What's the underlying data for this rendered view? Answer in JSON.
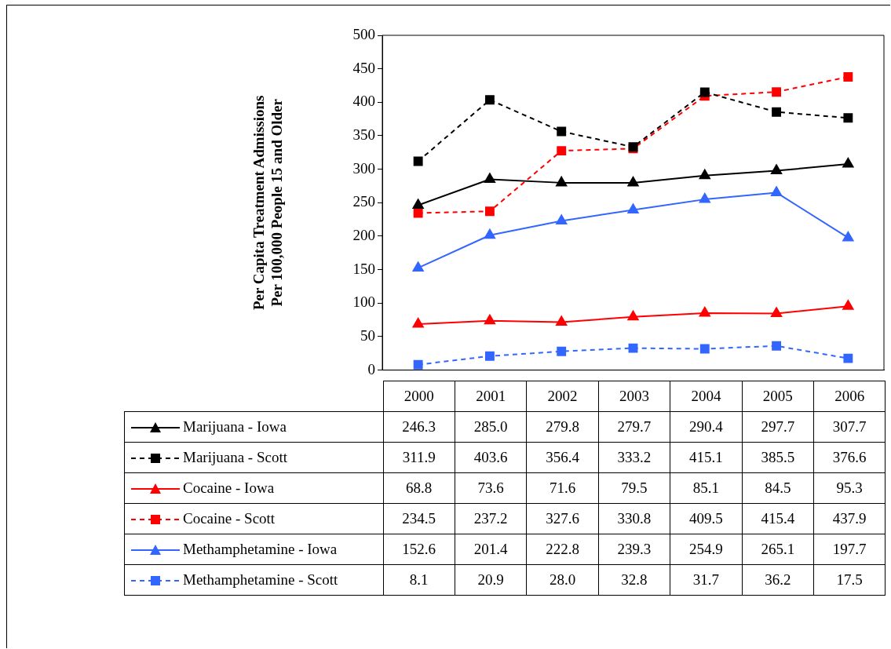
{
  "chart_data": {
    "type": "line",
    "ylabel": "Per Capita Treatment Admissions\nPer 100,000 People 15 and Older",
    "categories": [
      "2000",
      "2001",
      "2002",
      "2003",
      "2004",
      "2005",
      "2006"
    ],
    "ylim": [
      0,
      500
    ],
    "yticks": [
      0,
      50,
      100,
      150,
      200,
      250,
      300,
      350,
      400,
      450,
      500
    ],
    "grid": false,
    "legend": "bottom",
    "series": [
      {
        "name": "Marijuana - Iowa",
        "color": "#000000",
        "marker": "triangle",
        "line_style": "solid",
        "values": [
          246.3,
          285.0,
          279.8,
          279.7,
          290.4,
          297.7,
          307.7
        ],
        "value_labels": [
          "246.3",
          "285.0",
          "279.8",
          "279.7",
          "290.4",
          "297.7",
          "307.7"
        ]
      },
      {
        "name": "Marijuana - Scott",
        "color": "#000000",
        "marker": "square",
        "line_style": "dashed",
        "values": [
          311.9,
          403.6,
          356.4,
          333.2,
          415.1,
          385.5,
          376.6
        ],
        "value_labels": [
          "311.9",
          "403.6",
          "356.4",
          "333.2",
          "415.1",
          "385.5",
          "376.6"
        ]
      },
      {
        "name": "Cocaine - Iowa",
        "color": "#ff0000",
        "marker": "triangle",
        "line_style": "solid",
        "values": [
          68.8,
          73.6,
          71.6,
          79.5,
          85.1,
          84.5,
          95.3
        ],
        "value_labels": [
          "68.8",
          "73.6",
          "71.6",
          "79.5",
          "85.1",
          "84.5",
          "95.3"
        ]
      },
      {
        "name": "Cocaine - Scott",
        "color": "#ff0000",
        "marker": "square",
        "line_style": "dashed",
        "values": [
          234.5,
          237.2,
          327.6,
          330.8,
          409.5,
          415.4,
          437.9
        ],
        "value_labels": [
          "234.5",
          "237.2",
          "327.6",
          "330.8",
          "409.5",
          "415.4",
          "437.9"
        ]
      },
      {
        "name": "Methamphetamine - Iowa",
        "color": "#3366ff",
        "marker": "triangle",
        "line_style": "solid",
        "values": [
          152.6,
          201.4,
          222.8,
          239.3,
          254.9,
          265.1,
          197.7
        ],
        "value_labels": [
          "152.6",
          "201.4",
          "222.8",
          "239.3",
          "254.9",
          "265.1",
          "197.7"
        ]
      },
      {
        "name": "Methamphetamine - Scott",
        "color": "#3366ff",
        "marker": "square",
        "line_style": "dashed",
        "values": [
          8.1,
          20.9,
          28.0,
          32.8,
          31.7,
          36.2,
          17.5
        ],
        "value_labels": [
          "8.1",
          "20.9",
          "28.0",
          "32.8",
          "31.7",
          "36.2",
          "17.5"
        ]
      }
    ]
  }
}
